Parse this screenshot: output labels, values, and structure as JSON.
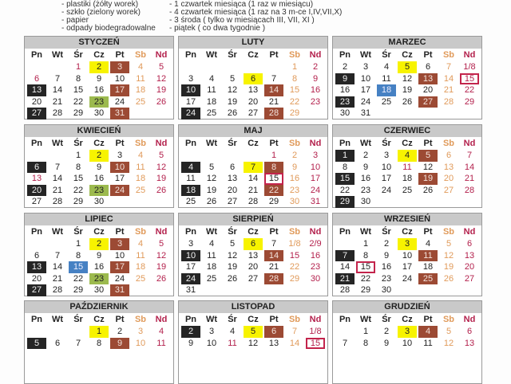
{
  "legend": {
    "types": [
      "- plastiki (żółty worek)",
      "- szkło (zielony worek)",
      "- papier",
      "- odpady biodegradowalne"
    ],
    "schedule": [
      "- 1 czwartek miesiąca (1 raz w miesiącu)",
      "- 4 czwartek miesiąca (1 raz na 3 m-ce I,IV,VII,X)",
      "- 3 środa ( tylko w miesiącach III, VII, XI )",
      "- piątek ( co dwa tygodnie )"
    ]
  },
  "weekdays": [
    "Pn",
    "Wt",
    "Śr",
    "Cz",
    "Pt",
    "Sb",
    "Nd"
  ],
  "colors": {
    "plastic": "#f7f300",
    "bio": "#9c4a34",
    "dark": "#252525",
    "glass": "#9cba4e",
    "paper": "#4681c3",
    "marked": "#c3244c",
    "saturday": "#e09a5a",
    "holiday": "#b3204c"
  },
  "months": [
    {
      "name": "STYCZEŃ",
      "weeks": [
        [
          "",
          "",
          {
            "d": "1",
            "c": "h"
          },
          {
            "d": "2",
            "c": "y"
          },
          {
            "d": "3",
            "c": "b"
          },
          "4",
          "5"
        ],
        [
          {
            "d": "6",
            "c": "h"
          },
          "7",
          "8",
          "9",
          "10",
          "11",
          "12"
        ],
        [
          {
            "d": "13",
            "c": "d"
          },
          "14",
          "15",
          "16",
          {
            "d": "17",
            "c": "b"
          },
          "18",
          "19"
        ],
        [
          "20",
          "21",
          "22",
          {
            "d": "23",
            "c": "g"
          },
          "24",
          "25",
          "26"
        ],
        [
          {
            "d": "27",
            "c": "d"
          },
          "28",
          "29",
          "30",
          {
            "d": "31",
            "c": "b"
          },
          "",
          ""
        ]
      ]
    },
    {
      "name": "LUTY",
      "weeks": [
        [
          "",
          "",
          "",
          "",
          "",
          "1",
          "2"
        ],
        [
          "3",
          "4",
          "5",
          {
            "d": "6",
            "c": "y"
          },
          "7",
          "8",
          "9"
        ],
        [
          {
            "d": "10",
            "c": "d"
          },
          "11",
          "12",
          "13",
          {
            "d": "14",
            "c": "b"
          },
          "15",
          "16"
        ],
        [
          "17",
          "18",
          "19",
          "20",
          "21",
          "22",
          "23"
        ],
        [
          {
            "d": "24",
            "c": "d"
          },
          "25",
          "26",
          "27",
          {
            "d": "28",
            "c": "b"
          },
          "29",
          ""
        ]
      ]
    },
    {
      "name": "MARZEC",
      "weeks": [
        [
          "2",
          "3",
          "4",
          {
            "d": "5",
            "c": "y"
          },
          "6",
          "7",
          "1/8"
        ],
        [
          {
            "d": "9",
            "c": "d"
          },
          "10",
          "11",
          "12",
          {
            "d": "13",
            "c": "b"
          },
          "14",
          {
            "d": "15",
            "c": "box"
          }
        ],
        [
          "16",
          "17",
          {
            "d": "18",
            "c": "bl"
          },
          "19",
          "20",
          "21",
          "22"
        ],
        [
          {
            "d": "23",
            "c": "d"
          },
          "24",
          "25",
          "26",
          {
            "d": "27",
            "c": "b"
          },
          "28",
          "29"
        ],
        [
          "30",
          "31",
          "",
          "",
          "",
          "",
          ""
        ]
      ]
    },
    {
      "name": "KWIECIEŃ",
      "weeks": [
        [
          "",
          "",
          "1",
          {
            "d": "2",
            "c": "y"
          },
          "3",
          "4",
          "5"
        ],
        [
          {
            "d": "6",
            "c": "d"
          },
          "7",
          "8",
          "9",
          {
            "d": "10",
            "c": "b"
          },
          "11",
          "12"
        ],
        [
          {
            "d": "13",
            "c": "h"
          },
          "14",
          "15",
          "16",
          "17",
          "18",
          "19"
        ],
        [
          {
            "d": "20",
            "c": "d"
          },
          "21",
          "22",
          {
            "d": "23",
            "c": "g"
          },
          {
            "d": "24",
            "c": "b"
          },
          "25",
          "26"
        ],
        [
          "27",
          "28",
          "29",
          "30",
          "",
          "",
          ""
        ]
      ]
    },
    {
      "name": "MAJ",
      "weeks": [
        [
          "",
          "",
          "",
          "",
          {
            "d": "1",
            "c": "h"
          },
          "2",
          "3"
        ],
        [
          {
            "d": "4",
            "c": "d"
          },
          "5",
          "6",
          {
            "d": "7",
            "c": "y"
          },
          {
            "d": "8",
            "c": "b"
          },
          "9",
          "10"
        ],
        [
          "11",
          "12",
          "13",
          "14",
          {
            "d": "15",
            "c": "box"
          },
          "16",
          "17"
        ],
        [
          {
            "d": "18",
            "c": "d"
          },
          "19",
          "20",
          "21",
          {
            "d": "22",
            "c": "b"
          },
          "23",
          "24"
        ],
        [
          "25",
          "26",
          "27",
          "28",
          "29",
          "30",
          "31"
        ]
      ]
    },
    {
      "name": "CZERWIEC",
      "weeks": [
        [
          {
            "d": "1",
            "c": "d"
          },
          "2",
          "3",
          {
            "d": "4",
            "c": "y"
          },
          {
            "d": "5",
            "c": "b"
          },
          "6",
          "7"
        ],
        [
          "8",
          "9",
          "10",
          {
            "d": "11",
            "c": "h"
          },
          "12",
          "13",
          "14"
        ],
        [
          {
            "d": "15",
            "c": "d"
          },
          "16",
          "17",
          "18",
          {
            "d": "19",
            "c": "b"
          },
          "20",
          "21"
        ],
        [
          "22",
          "23",
          "24",
          "25",
          "26",
          "27",
          "28"
        ],
        [
          {
            "d": "29",
            "c": "d"
          },
          "30",
          "",
          "",
          "",
          "",
          ""
        ]
      ]
    },
    {
      "name": "LIPIEC",
      "weeks": [
        [
          "",
          "",
          "1",
          {
            "d": "2",
            "c": "y"
          },
          {
            "d": "3",
            "c": "b"
          },
          "4",
          "5"
        ],
        [
          "6",
          "7",
          "8",
          "9",
          "10",
          "11",
          "12"
        ],
        [
          {
            "d": "13",
            "c": "d"
          },
          "14",
          {
            "d": "15",
            "c": "bl"
          },
          "16",
          {
            "d": "17",
            "c": "b"
          },
          "18",
          "19"
        ],
        [
          "20",
          "21",
          "22",
          {
            "d": "23",
            "c": "g"
          },
          "24",
          "25",
          "26"
        ],
        [
          {
            "d": "27",
            "c": "d"
          },
          "28",
          "29",
          "30",
          {
            "d": "31",
            "c": "b"
          },
          "",
          ""
        ]
      ]
    },
    {
      "name": "SIERPIEŃ",
      "weeks": [
        [
          "3",
          "4",
          "5",
          {
            "d": "6",
            "c": "y"
          },
          "7",
          "1/8",
          "2/9"
        ],
        [
          {
            "d": "10",
            "c": "d"
          },
          "11",
          "12",
          "13",
          {
            "d": "14",
            "c": "b"
          },
          {
            "d": "15",
            "c": "h"
          },
          "16"
        ],
        [
          "17",
          "18",
          "19",
          "20",
          "21",
          "22",
          "23"
        ],
        [
          {
            "d": "24",
            "c": "d"
          },
          "25",
          "26",
          "27",
          {
            "d": "28",
            "c": "b"
          },
          "29",
          "30"
        ],
        [
          "31",
          "",
          "",
          "",
          "",
          "",
          ""
        ]
      ]
    },
    {
      "name": "WRZESIEŃ",
      "weeks": [
        [
          "",
          "1",
          "2",
          {
            "d": "3",
            "c": "y"
          },
          "4",
          "5",
          "6"
        ],
        [
          {
            "d": "7",
            "c": "d"
          },
          "8",
          "9",
          "10",
          {
            "d": "11",
            "c": "b"
          },
          "12",
          "13"
        ],
        [
          "14",
          {
            "d": "15",
            "c": "box"
          },
          "16",
          "17",
          "18",
          "19",
          "20"
        ],
        [
          {
            "d": "21",
            "c": "d"
          },
          "22",
          "23",
          "24",
          {
            "d": "25",
            "c": "b"
          },
          "26",
          "27"
        ],
        [
          "28",
          "29",
          "30",
          "",
          "",
          "",
          ""
        ]
      ]
    },
    {
      "name": "PAŹDZIERNIK",
      "weeks": [
        [
          "",
          "",
          "",
          {
            "d": "1",
            "c": "y"
          },
          "2",
          "3",
          "4"
        ],
        [
          {
            "d": "5",
            "c": "d"
          },
          "6",
          "7",
          "8",
          {
            "d": "9",
            "c": "b"
          },
          "10",
          "11"
        ]
      ]
    },
    {
      "name": "LISTOPAD",
      "weeks": [
        [
          {
            "d": "2",
            "c": "d"
          },
          "3",
          "4",
          {
            "d": "5",
            "c": "y"
          },
          {
            "d": "6",
            "c": "b"
          },
          "7",
          "1/8"
        ],
        [
          "9",
          "10",
          {
            "d": "11",
            "c": "h"
          },
          "12",
          "13",
          "14",
          {
            "d": "15",
            "c": "box"
          }
        ]
      ]
    },
    {
      "name": "GRUDZIEŃ",
      "weeks": [
        [
          "",
          "1",
          "2",
          {
            "d": "3",
            "c": "y"
          },
          {
            "d": "4",
            "c": "b"
          },
          "5",
          "6"
        ],
        [
          "7",
          "8",
          "9",
          "10",
          "11",
          "12",
          "13"
        ]
      ]
    }
  ]
}
